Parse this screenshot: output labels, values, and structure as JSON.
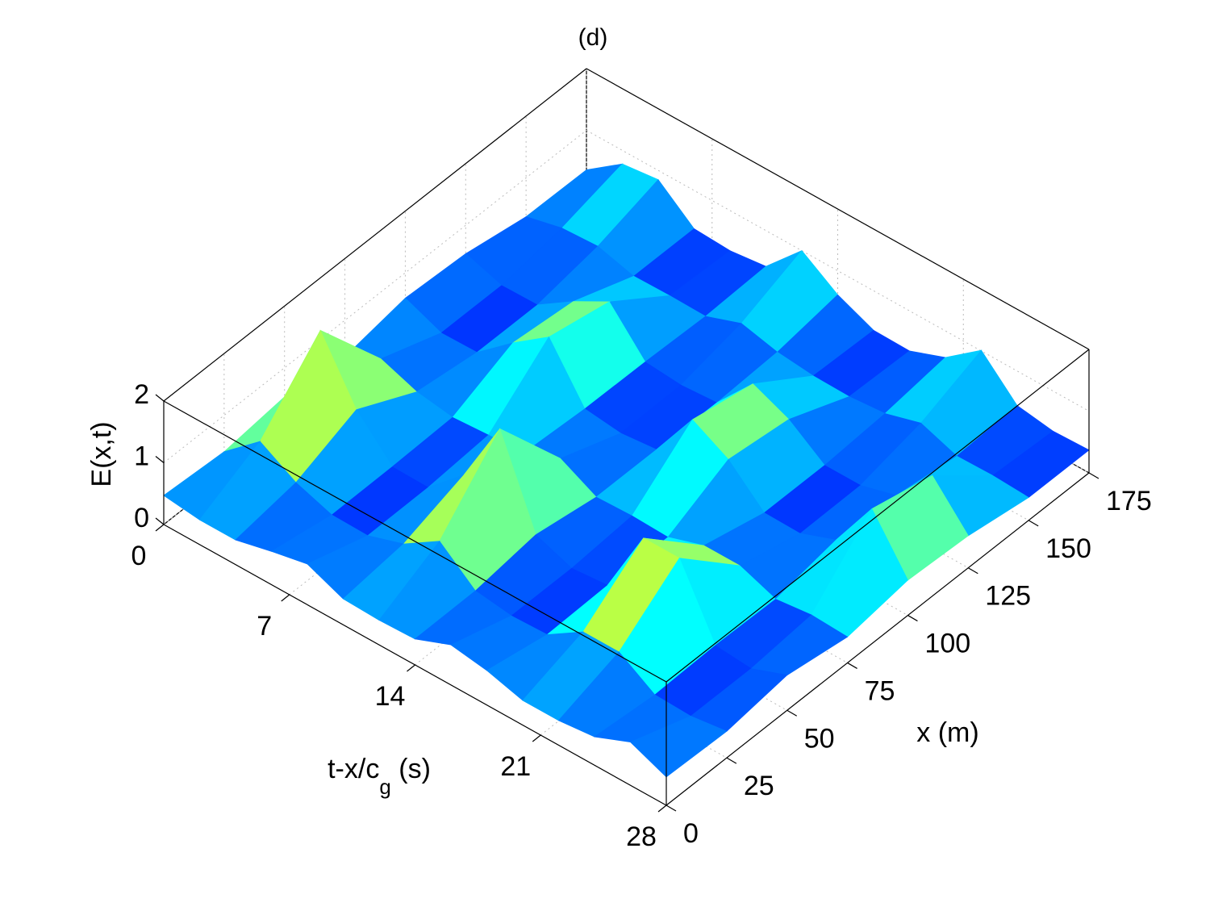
{
  "chart_data": {
    "type": "surface",
    "title": "(d)",
    "tlabel": [
      "t-x/c",
      "g",
      " (s)"
    ],
    "xlabel": "x (m)",
    "zlabel": "E(x,t)",
    "colormap": "jet",
    "grid": true,
    "t": [
      0,
      2,
      4,
      6,
      8,
      10,
      12,
      14,
      16,
      18,
      20,
      22,
      24,
      26,
      28
    ],
    "x": [
      0,
      25,
      50,
      75,
      100,
      125,
      150,
      175
    ],
    "z": [
      [
        0.47,
        0.4,
        0.4,
        0.54,
        0.66,
        0.42,
        0.4,
        0.42,
        0.65,
        0.56,
        0.4,
        0.4,
        0.46,
        0.7,
        0.46
      ],
      [
        0.41,
        0.9,
        0.56,
        0.36,
        0.35,
        0.54,
        0.91,
        0.43,
        0.35,
        0.37,
        0.74,
        0.74,
        0.37,
        0.35,
        0.43
      ],
      [
        0.53,
        1.93,
        0.97,
        0.37,
        0.36,
        0.89,
        1.96,
        0.57,
        0.35,
        0.4,
        1.49,
        1.49,
        0.4,
        0.35,
        0.57
      ],
      [
        0.41,
        0.7,
        0.49,
        0.4,
        0.44,
        0.48,
        0.71,
        0.41,
        0.43,
        0.41,
        0.6,
        0.6,
        0.38,
        0.45,
        0.42
      ],
      [
        0.59,
        0.35,
        0.36,
        0.84,
        1.26,
        0.42,
        0.35,
        0.41,
        1.22,
        0.9,
        0.36,
        0.35,
        0.57,
        1.4,
        0.57
      ],
      [
        0.54,
        0.35,
        0.36,
        0.74,
        1.06,
        0.41,
        0.36,
        0.4,
        1.03,
        0.78,
        0.36,
        0.36,
        0.52,
        1.17,
        0.52
      ],
      [
        0.37,
        0.51,
        0.54,
        0.38,
        0.39,
        0.38,
        0.59,
        0.45,
        0.39,
        0.38,
        0.43,
        0.6,
        0.39,
        0.4,
        0.37
      ],
      [
        0.36,
        0.78,
        0.85,
        0.38,
        0.35,
        0.42,
        1.0,
        0.61,
        0.36,
        0.35,
        0.57,
        1.01,
        0.44,
        0.35,
        0.37
      ]
    ],
    "tlim": [
      0,
      28
    ],
    "tticks": [
      0,
      7,
      14,
      21,
      28
    ],
    "xlim": [
      0,
      175
    ],
    "xticks": [
      0,
      25,
      50,
      75,
      100,
      125,
      150,
      175
    ],
    "zlim": [
      0,
      2
    ],
    "zticks": [
      0,
      1,
      2
    ]
  }
}
